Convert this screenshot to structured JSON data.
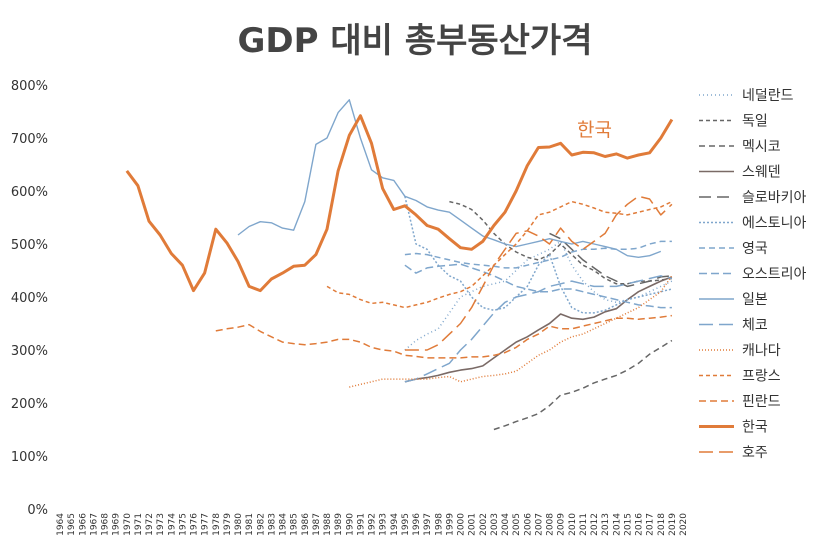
{
  "chart_data": {
    "type": "line",
    "title": "GDP 대비 총부동산가격",
    "y_unit": "%",
    "ylim": [
      0,
      800
    ],
    "y_ticks": [
      0,
      100,
      200,
      300,
      400,
      500,
      600,
      700,
      800
    ],
    "x_range": [
      1964,
      2020
    ],
    "xlabel": "",
    "ylabel": "",
    "grid": false,
    "legend_position": "right",
    "annotation": "한국",
    "series": [
      {
        "name": "네덜란드",
        "color": "#7fa6cc",
        "dash": "1,3",
        "width": 1.5,
        "x": [
          1995,
          1996,
          1997,
          1998,
          1999,
          2000,
          2001,
          2002,
          2003,
          2004,
          2005,
          2006,
          2007,
          2008,
          2009,
          2010,
          2011,
          2012,
          2013,
          2014,
          2015,
          2016,
          2017,
          2018,
          2019
        ],
        "y": [
          300,
          318,
          330,
          340,
          370,
          400,
          410,
          420,
          425,
          430,
          450,
          470,
          480,
          490,
          505,
          460,
          430,
          410,
          395,
          390,
          395,
          400,
          410,
          420,
          430
        ]
      },
      {
        "name": "독일",
        "color": "#666666",
        "dash": "4,3",
        "width": 1.5,
        "x": [
          1999,
          2000,
          2001,
          2002,
          2003,
          2004,
          2005,
          2006,
          2007,
          2008,
          2009,
          2010,
          2011,
          2012,
          2013,
          2014,
          2015,
          2016,
          2017,
          2018,
          2019
        ],
        "y": [
          580,
          575,
          565,
          545,
          520,
          500,
          485,
          475,
          470,
          480,
          500,
          480,
          460,
          450,
          435,
          425,
          425,
          430,
          430,
          432,
          435
        ]
      },
      {
        "name": "멕시코",
        "color": "#666666",
        "dash": "6,4",
        "width": 1.5,
        "x": [
          2003,
          2004,
          2005,
          2006,
          2007,
          2008,
          2009,
          2010,
          2011,
          2012,
          2013,
          2014,
          2015,
          2016,
          2017,
          2018,
          2019
        ],
        "y": [
          150,
          157,
          165,
          172,
          180,
          195,
          215,
          220,
          228,
          238,
          245,
          252,
          262,
          275,
          292,
          305,
          318
        ]
      },
      {
        "name": "스웨덴",
        "color": "#7a6a66",
        "dash": "",
        "width": 1.6,
        "x": [
          1995,
          1996,
          1997,
          1998,
          1999,
          2000,
          2001,
          2002,
          2003,
          2004,
          2005,
          2006,
          2007,
          2008,
          2009,
          2010,
          2011,
          2012,
          2013,
          2014,
          2015,
          2016,
          2017,
          2018,
          2019
        ],
        "y": [
          240,
          245,
          248,
          252,
          258,
          262,
          265,
          270,
          285,
          300,
          315,
          325,
          338,
          350,
          368,
          360,
          358,
          362,
          372,
          378,
          395,
          410,
          420,
          430,
          438
        ]
      },
      {
        "name": "슬로바키아",
        "color": "#666666",
        "dash": "12,6",
        "width": 1.5,
        "x": [
          2008,
          2009,
          2010,
          2011,
          2012,
          2013,
          2014,
          2015,
          2016,
          2017,
          2018,
          2019
        ],
        "y": [
          520,
          510,
          490,
          470,
          455,
          440,
          430,
          420,
          425,
          430,
          438,
          440
        ]
      },
      {
        "name": "에스토니아",
        "color": "#7fa6cc",
        "dash": "2,2",
        "width": 1.5,
        "x": [
          1995,
          1996,
          1997,
          1998,
          1999,
          2000,
          2001,
          2002,
          2003,
          2004,
          2005,
          2006,
          2007,
          2008,
          2009,
          2010,
          2011,
          2012,
          2013,
          2014,
          2015,
          2016,
          2017,
          2018,
          2019
        ],
        "y": [
          590,
          500,
          490,
          460,
          440,
          430,
          400,
          380,
          375,
          380,
          400,
          420,
          460,
          480,
          420,
          380,
          370,
          370,
          375,
          385,
          395,
          400,
          405,
          410,
          415
        ]
      },
      {
        "name": "영국",
        "color": "#7fa6cc",
        "dash": "6,4",
        "width": 1.5,
        "x": [
          1995,
          1996,
          1997,
          1998,
          1999,
          2000,
          2001,
          2002,
          2003,
          2004,
          2005,
          2006,
          2007,
          2008,
          2009,
          2010,
          2011,
          2012,
          2013,
          2014,
          2015,
          2016,
          2017,
          2018,
          2019
        ],
        "y": [
          480,
          482,
          480,
          475,
          470,
          465,
          462,
          460,
          458,
          455,
          455,
          460,
          465,
          470,
          475,
          485,
          490,
          490,
          492,
          490,
          490,
          492,
          500,
          505,
          505
        ]
      },
      {
        "name": "오스트리아",
        "color": "#7fa6cc",
        "dash": "8,4",
        "width": 1.5,
        "x": [
          1995,
          1996,
          1997,
          1998,
          1999,
          2000,
          2001,
          2002,
          2003,
          2004,
          2005,
          2006,
          2007,
          2008,
          2009,
          2010,
          2011,
          2012,
          2013,
          2014,
          2015,
          2016,
          2017,
          2018,
          2019
        ],
        "y": [
          460,
          445,
          455,
          458,
          460,
          462,
          455,
          448,
          440,
          430,
          420,
          415,
          410,
          410,
          415,
          415,
          410,
          405,
          400,
          395,
          390,
          385,
          383,
          380,
          380
        ]
      },
      {
        "name": "일본",
        "color": "#7fa6cc",
        "dash": "",
        "width": 1.4,
        "x": [
          1980,
          1981,
          1982,
          1983,
          1984,
          1985,
          1986,
          1987,
          1988,
          1989,
          1990,
          1991,
          1992,
          1993,
          1994,
          1995,
          1996,
          1997,
          1998,
          1999,
          2000,
          2001,
          2002,
          2003,
          2004,
          2005,
          2006,
          2007,
          2008,
          2009,
          2010,
          2011,
          2012,
          2013,
          2014,
          2015,
          2016,
          2017,
          2018
        ],
        "y": [
          517,
          533,
          542,
          540,
          530,
          526,
          580,
          688,
          700,
          748,
          772,
          700,
          640,
          625,
          620,
          590,
          582,
          570,
          564,
          560,
          545,
          530,
          515,
          508,
          500,
          495,
          500,
          505,
          510,
          505,
          500,
          505,
          500,
          495,
          490,
          478,
          475,
          478,
          486
        ]
      },
      {
        "name": "체코",
        "color": "#7fa6cc",
        "dash": "14,6",
        "width": 1.5,
        "x": [
          1995,
          1996,
          1997,
          1998,
          1999,
          2000,
          2001,
          2002,
          2003,
          2004,
          2005,
          2006,
          2007,
          2008,
          2009,
          2010,
          2011,
          2012,
          2013,
          2014,
          2015,
          2016,
          2017,
          2018,
          2019
        ],
        "y": [
          240,
          245,
          255,
          265,
          275,
          300,
          320,
          345,
          370,
          390,
          400,
          405,
          410,
          420,
          425,
          430,
          425,
          420,
          420,
          420,
          425,
          430,
          435,
          440,
          435
        ]
      },
      {
        "name": "캐나다",
        "color": "#e07b39",
        "dash": "1,2",
        "width": 1.5,
        "x": [
          1990,
          1991,
          1992,
          1993,
          1994,
          1995,
          1996,
          1997,
          1998,
          1999,
          2000,
          2001,
          2002,
          2003,
          2004,
          2005,
          2006,
          2007,
          2008,
          2009,
          2010,
          2011,
          2012,
          2013,
          2014,
          2015,
          2016,
          2017,
          2018,
          2019
        ],
        "y": [
          230,
          235,
          240,
          245,
          245,
          245,
          245,
          245,
          248,
          250,
          240,
          245,
          250,
          252,
          255,
          260,
          275,
          290,
          300,
          315,
          325,
          330,
          340,
          350,
          360,
          370,
          380,
          395,
          410,
          440
        ]
      },
      {
        "name": "프랑스",
        "color": "#e07b39",
        "dash": "4,3",
        "width": 1.5,
        "x": [
          1988,
          1989,
          1990,
          1991,
          1992,
          1993,
          1994,
          1995,
          1996,
          1997,
          1998,
          1999,
          2000,
          2001,
          2002,
          2003,
          2004,
          2005,
          2006,
          2007,
          2008,
          2009,
          2010,
          2011,
          2012,
          2013,
          2014,
          2015,
          2016,
          2017,
          2018,
          2019
        ],
        "y": [
          420,
          408,
          405,
          395,
          388,
          390,
          385,
          380,
          385,
          390,
          398,
          405,
          410,
          420,
          440,
          460,
          480,
          500,
          525,
          555,
          560,
          570,
          580,
          575,
          568,
          560,
          558,
          555,
          560,
          565,
          570,
          580
        ]
      },
      {
        "name": "핀란드",
        "color": "#e07b39",
        "dash": "7,4",
        "width": 1.5,
        "x": [
          1978,
          1979,
          1980,
          1981,
          1982,
          1983,
          1984,
          1985,
          1986,
          1987,
          1988,
          1989,
          1990,
          1991,
          1992,
          1993,
          1994,
          1995,
          1996,
          1997,
          1998,
          1999,
          2000,
          2001,
          2002,
          2003,
          2004,
          2005,
          2006,
          2007,
          2008,
          2009,
          2010,
          2011,
          2012,
          2013,
          2014,
          2015,
          2016,
          2017,
          2018,
          2019
        ],
        "y": [
          336,
          340,
          343,
          348,
          335,
          325,
          315,
          312,
          310,
          312,
          315,
          320,
          320,
          315,
          305,
          300,
          298,
          290,
          288,
          285,
          285,
          285,
          285,
          287,
          287,
          290,
          295,
          305,
          320,
          330,
          345,
          340,
          340,
          345,
          350,
          355,
          360,
          360,
          358,
          360,
          362,
          365
        ]
      },
      {
        "name": "한국",
        "color": "#e07b39",
        "dash": "",
        "width": 3,
        "x": [
          1970,
          1971,
          1972,
          1973,
          1974,
          1975,
          1976,
          1977,
          1978,
          1979,
          1980,
          1981,
          1982,
          1983,
          1984,
          1985,
          1986,
          1987,
          1988,
          1989,
          1990,
          1991,
          1992,
          1993,
          1994,
          1995,
          1996,
          1997,
          1998,
          1999,
          2000,
          2001,
          2002,
          2003,
          2004,
          2005,
          2006,
          2007,
          2008,
          2009,
          2010,
          2011,
          2012,
          2013,
          2014,
          2015,
          2016,
          2017,
          2018,
          2019
        ],
        "y": [
          638,
          610,
          543,
          517,
          482,
          460,
          412,
          445,
          528,
          502,
          467,
          420,
          412,
          434,
          445,
          458,
          460,
          480,
          528,
          638,
          705,
          742,
          690,
          605,
          565,
          572,
          555,
          535,
          528,
          510,
          493,
          490,
          505,
          535,
          560,
          600,
          648,
          682,
          683,
          690,
          668,
          673,
          672,
          665,
          670,
          662,
          668,
          672,
          700,
          735
        ]
      },
      {
        "name": "호주",
        "color": "#e07b39",
        "dash": "14,6",
        "width": 1.5,
        "x": [
          1995,
          1996,
          1997,
          1998,
          1999,
          2000,
          2001,
          2002,
          2003,
          2004,
          2005,
          2006,
          2007,
          2008,
          2009,
          2010,
          2011,
          2012,
          2013,
          2014,
          2015,
          2016,
          2017,
          2018,
          2019
        ],
        "y": [
          300,
          300,
          300,
          310,
          330,
          350,
          380,
          420,
          460,
          490,
          520,
          525,
          515,
          500,
          530,
          505,
          490,
          505,
          520,
          555,
          575,
          590,
          585,
          555,
          575
        ]
      }
    ]
  }
}
